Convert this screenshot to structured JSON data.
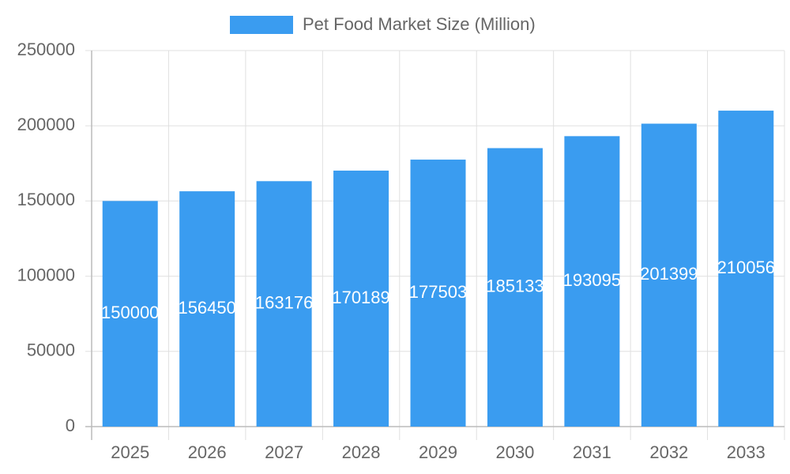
{
  "chart_data": {
    "type": "bar",
    "categories": [
      "2025",
      "2026",
      "2027",
      "2028",
      "2029",
      "2030",
      "2031",
      "2032",
      "2033"
    ],
    "series": [
      {
        "name": "Pet Food Market Size (Million)",
        "color": "#3a9cf0",
        "values": [
          150000,
          156450,
          163176,
          170189,
          177503,
          185133,
          193095,
          201399,
          210056
        ]
      }
    ],
    "ylim": [
      0,
      250000
    ],
    "yticks": [
      0,
      50000,
      100000,
      150000,
      200000,
      250000
    ],
    "grid": true,
    "legend": "top",
    "data_labels": true
  }
}
